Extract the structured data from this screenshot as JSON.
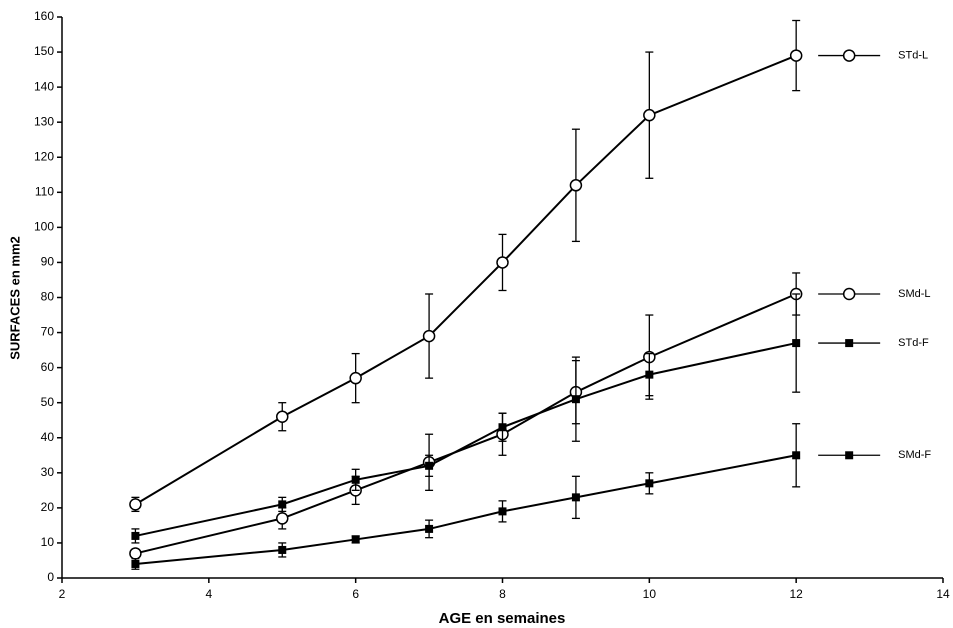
{
  "chart_data": {
    "type": "line",
    "x_label": "AGE en semaines",
    "y_label": "SURFACES en mm2",
    "xlim": [
      2,
      14
    ],
    "xticks": [
      2,
      4,
      6,
      8,
      10,
      12,
      14
    ],
    "ylim": [
      0,
      160
    ],
    "yticks": [
      0,
      10,
      20,
      30,
      40,
      50,
      60,
      70,
      80,
      90,
      100,
      110,
      120,
      130,
      140,
      150,
      160
    ],
    "x": [
      3,
      5,
      6,
      7,
      8,
      9,
      10,
      12
    ],
    "series": [
      {
        "name": "STd-L",
        "marker": "open-circle",
        "color": "#000000",
        "values": [
          21,
          46,
          57,
          69,
          90,
          112,
          132,
          149
        ],
        "errors": [
          2,
          4,
          7,
          12,
          8,
          16,
          18,
          10
        ]
      },
      {
        "name": "SMd-L",
        "marker": "open-circle",
        "color": "#000000",
        "values": [
          7,
          17,
          25,
          33,
          41,
          53,
          63,
          81
        ],
        "errors": [
          1,
          3,
          4,
          8,
          6,
          9,
          12,
          6
        ]
      },
      {
        "name": "STd-F",
        "marker": "filled-square",
        "color": "#000000",
        "values": [
          12,
          21,
          28,
          32,
          43,
          51,
          58,
          67
        ],
        "errors": [
          2,
          2,
          3,
          3,
          4,
          12,
          6,
          14
        ]
      },
      {
        "name": "SMd-F",
        "marker": "filled-square",
        "color": "#000000",
        "values": [
          4,
          8,
          11,
          14,
          19,
          23,
          27,
          35
        ],
        "errors": [
          1.5,
          2,
          1,
          2.5,
          3,
          6,
          3,
          9
        ]
      }
    ]
  }
}
